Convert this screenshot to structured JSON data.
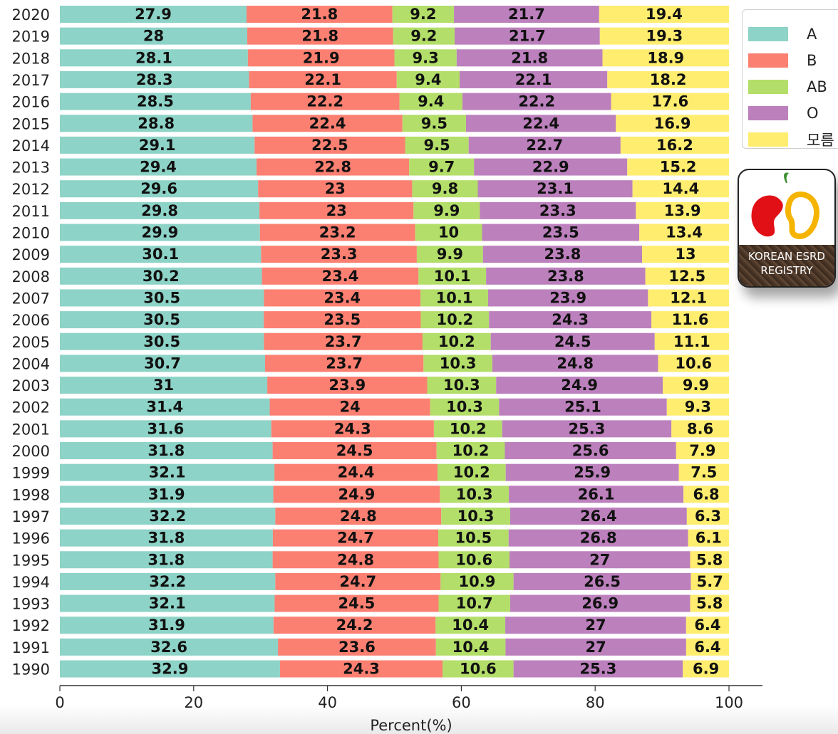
{
  "chart_data": {
    "type": "bar",
    "orientation": "horizontal",
    "stacked": true,
    "categories": [
      "2020",
      "2019",
      "2018",
      "2017",
      "2016",
      "2015",
      "2014",
      "2013",
      "2012",
      "2011",
      "2010",
      "2009",
      "2008",
      "2007",
      "2006",
      "2005",
      "2004",
      "2003",
      "2002",
      "2001",
      "2000",
      "1999",
      "1998",
      "1997",
      "1996",
      "1995",
      "1994",
      "1993",
      "1992",
      "1991",
      "1990"
    ],
    "series": [
      {
        "name": "A",
        "color": "#8dd3c7",
        "values": [
          27.9,
          28,
          28.1,
          28.3,
          28.5,
          28.8,
          29.1,
          29.4,
          29.6,
          29.8,
          29.9,
          30.1,
          30.2,
          30.5,
          30.5,
          30.5,
          30.7,
          31,
          31.4,
          31.6,
          31.8,
          32.1,
          31.9,
          32.2,
          31.8,
          31.8,
          32.2,
          32.1,
          31.9,
          32.6,
          32.9
        ]
      },
      {
        "name": "B",
        "color": "#fb8072",
        "values": [
          21.8,
          21.8,
          21.9,
          22.1,
          22.2,
          22.4,
          22.5,
          22.8,
          23,
          23,
          23.2,
          23.3,
          23.4,
          23.4,
          23.5,
          23.7,
          23.7,
          23.9,
          24,
          24.3,
          24.5,
          24.4,
          24.9,
          24.8,
          24.7,
          24.8,
          24.7,
          24.5,
          24.2,
          23.6,
          24.3
        ]
      },
      {
        "name": "AB",
        "color": "#b3de69",
        "values": [
          9.2,
          9.2,
          9.3,
          9.4,
          9.4,
          9.5,
          9.5,
          9.7,
          9.8,
          9.9,
          10,
          9.9,
          10.1,
          10.1,
          10.2,
          10.2,
          10.3,
          10.3,
          10.3,
          10.2,
          10.2,
          10.2,
          10.3,
          10.3,
          10.5,
          10.6,
          10.9,
          10.7,
          10.4,
          10.4,
          10.6
        ]
      },
      {
        "name": "O",
        "color": "#bc80bd",
        "values": [
          21.7,
          21.7,
          21.8,
          22.1,
          22.2,
          22.4,
          22.7,
          22.9,
          23.1,
          23.3,
          23.5,
          23.8,
          23.8,
          23.9,
          24.3,
          24.5,
          24.8,
          24.9,
          25.1,
          25.3,
          25.6,
          25.9,
          26.1,
          26.4,
          26.8,
          27,
          26.5,
          26.9,
          27,
          27,
          25.3
        ]
      },
      {
        "name": "모름",
        "color": "#ffed6f",
        "values": [
          19.4,
          19.3,
          18.9,
          18.2,
          17.6,
          16.9,
          16.2,
          15.2,
          14.4,
          13.9,
          13.4,
          13,
          12.5,
          12.1,
          11.6,
          11.1,
          10.6,
          9.9,
          9.3,
          8.6,
          7.9,
          7.5,
          6.8,
          6.3,
          6.1,
          5.8,
          5.7,
          5.8,
          6.4,
          6.4,
          6.9
        ]
      }
    ],
    "xlabel": "Percent(%)",
    "ylabel": "",
    "xlim": [
      0,
      100
    ],
    "xticks": [
      0,
      20,
      40,
      60,
      80,
      100
    ],
    "legend_position": "right",
    "grid": false
  },
  "logo": {
    "line1": "KOREAN ESRD",
    "line2": "REGISTRY"
  }
}
